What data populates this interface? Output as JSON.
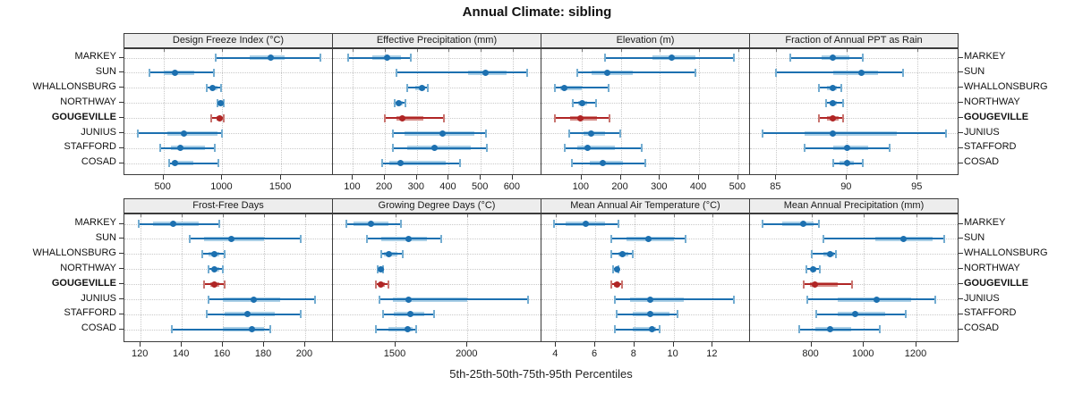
{
  "title": "Annual Climate: sibling",
  "footer_xlabel": "5th-25th-50th-75th-95th Percentiles",
  "locations": [
    "MARKEY",
    "SUN",
    "WHALLONSBURG",
    "NORTHWAY",
    "GOUGEVILLE",
    "JUNIUS",
    "STAFFORD",
    "COSAD"
  ],
  "highlighted_location": "GOUGEVILLE",
  "percentile_labels": [
    "5th",
    "25th",
    "50th",
    "75th",
    "95th"
  ],
  "colors": {
    "series_main": "#1c70b0",
    "series_band": "#aacfe6",
    "series_cap": "#74add1",
    "highlight_main": "#b02525",
    "highlight_band": "#d68f8a",
    "highlight_cap": "#c97570",
    "strip_bg": "#ededed",
    "panel_border": "#3c3c3c",
    "grid": "#c9c9c9",
    "text": "#1a1a1a"
  },
  "chart_data": {
    "type": "trellis-percentile-dotplot",
    "note": "Each row shows 5th/25th/50th/75th/95th percentiles: whisker with caps = 5th-95th, thick band = 25th-75th, dot = median",
    "legend_position": "none",
    "grid": "dotted",
    "panels": [
      {
        "title": "Design Freeze Index (°C)",
        "row": 0,
        "col": 0,
        "ticks": [
          500,
          1000,
          1500
        ],
        "xlim": [
          175,
          1940
        ],
        "values": [
          [
            940,
            1230,
            1410,
            1530,
            1830
          ],
          [
            380,
            500,
            595,
            760,
            930
          ],
          [
            870,
            895,
            920,
            960,
            990
          ],
          [
            960,
            975,
            985,
            995,
            1010
          ],
          [
            905,
            950,
            980,
            1000,
            1015
          ],
          [
            280,
            530,
            675,
            960,
            1000
          ],
          [
            470,
            560,
            645,
            850,
            935
          ],
          [
            545,
            570,
            600,
            755,
            965
          ]
        ]
      },
      {
        "title": "Effective Precipitation (mm)",
        "row": 0,
        "col": 1,
        "ticks": [
          100,
          200,
          300,
          400,
          500,
          600
        ],
        "xlim": [
          40,
          690
        ],
        "values": [
          [
            85,
            160,
            207,
            250,
            280
          ],
          [
            235,
            460,
            515,
            580,
            645
          ],
          [
            270,
            295,
            315,
            327,
            335
          ],
          [
            230,
            237,
            243,
            255,
            265
          ],
          [
            200,
            235,
            255,
            320,
            385
          ],
          [
            225,
            260,
            380,
            480,
            515
          ],
          [
            225,
            270,
            355,
            470,
            520
          ],
          [
            190,
            215,
            250,
            390,
            435
          ]
        ]
      },
      {
        "title": "Elevation (m)",
        "row": 0,
        "col": 2,
        "ticks": [
          100,
          200,
          300,
          400,
          500
        ],
        "xlim": [
          0,
          530
        ],
        "values": [
          [
            160,
            280,
            330,
            390,
            490
          ],
          [
            90,
            125,
            165,
            230,
            390
          ],
          [
            32,
            45,
            57,
            100,
            170
          ],
          [
            77,
            92,
            101,
            115,
            136
          ],
          [
            31,
            70,
            98,
            140,
            171
          ],
          [
            68,
            105,
            125,
            160,
            198
          ],
          [
            57,
            90,
            115,
            185,
            254
          ],
          [
            76,
            120,
            155,
            205,
            262
          ]
        ]
      },
      {
        "title": "Fraction of Annual PPT as Rain",
        "row": 0,
        "col": 3,
        "ticks": [
          85,
          90,
          95
        ],
        "xlim": [
          83.2,
          97.9
        ],
        "values": [
          [
            86,
            88.2,
            89,
            90.2,
            91.1
          ],
          [
            85,
            89,
            91,
            92.2,
            94
          ],
          [
            88,
            88.6,
            89,
            89.3,
            89.6
          ],
          [
            88.5,
            88.8,
            89,
            89.3,
            89.7
          ],
          [
            88,
            88.6,
            89,
            89.4,
            89.7
          ],
          [
            84,
            87,
            89,
            93.5,
            97
          ],
          [
            87,
            89,
            90,
            91.5,
            93
          ],
          [
            89,
            89.5,
            90,
            90.5,
            91.1
          ]
        ]
      },
      {
        "title": "Frost-Free Days",
        "row": 1,
        "col": 0,
        "ticks": [
          120,
          140,
          160,
          180,
          200
        ],
        "xlim": [
          112.5,
          213.5
        ],
        "values": [
          [
            119,
            126,
            136,
            148,
            158
          ],
          [
            144,
            151,
            164,
            180,
            198
          ],
          [
            150,
            153,
            156,
            158,
            161
          ],
          [
            153,
            155,
            156,
            158,
            160
          ],
          [
            151,
            154,
            156,
            158,
            161
          ],
          [
            153,
            160,
            175,
            188,
            205
          ],
          [
            152,
            161,
            172,
            185,
            198
          ],
          [
            135,
            160,
            174,
            180,
            183
          ]
        ]
      },
      {
        "title": "Growing Degree Days (°C)",
        "row": 1,
        "col": 1,
        "ticks": [
          1500,
          2000
        ],
        "xlim": [
          1070,
          2515
        ],
        "values": [
          [
            1160,
            1210,
            1330,
            1450,
            1540
          ],
          [
            1300,
            1400,
            1590,
            1720,
            1820
          ],
          [
            1400,
            1420,
            1450,
            1510,
            1550
          ],
          [
            1375,
            1385,
            1395,
            1405,
            1415
          ],
          [
            1365,
            1385,
            1400,
            1425,
            1450
          ],
          [
            1390,
            1480,
            1590,
            2000,
            2420
          ],
          [
            1410,
            1490,
            1600,
            1700,
            1770
          ],
          [
            1365,
            1450,
            1585,
            1620,
            1645
          ]
        ]
      },
      {
        "title": "Mean Annual Air Temperature (°C)",
        "row": 1,
        "col": 2,
        "ticks": [
          4,
          6,
          8,
          10,
          12
        ],
        "xlim": [
          3.3,
          13.9
        ],
        "values": [
          [
            3.9,
            4.5,
            5.5,
            6.5,
            7.2
          ],
          [
            6.8,
            7.6,
            8.7,
            10.0,
            10.6
          ],
          [
            6.8,
            7.2,
            7.4,
            7.7,
            7.9
          ],
          [
            6.9,
            7.0,
            7.1,
            7.15,
            7.2
          ],
          [
            6.8,
            6.95,
            7.1,
            7.2,
            7.35
          ],
          [
            7.0,
            7.8,
            8.8,
            10.5,
            13.1
          ],
          [
            7.1,
            7.9,
            8.8,
            9.8,
            10.2
          ],
          [
            7.0,
            7.9,
            8.9,
            9.1,
            9.3
          ]
        ]
      },
      {
        "title": "Mean Annual Precipitation (mm)",
        "row": 1,
        "col": 3,
        "ticks": [
          800,
          1000,
          1200
        ],
        "xlim": [
          570,
          1360
        ],
        "values": [
          [
            615,
            690,
            770,
            810,
            830
          ],
          [
            845,
            1045,
            1150,
            1260,
            1305
          ],
          [
            800,
            845,
            872,
            888,
            895
          ],
          [
            780,
            798,
            808,
            820,
            832
          ],
          [
            770,
            795,
            815,
            900,
            955
          ],
          [
            785,
            900,
            1050,
            1180,
            1270
          ],
          [
            820,
            900,
            965,
            1080,
            1160
          ],
          [
            755,
            815,
            873,
            950,
            1060
          ]
        ]
      }
    ]
  }
}
